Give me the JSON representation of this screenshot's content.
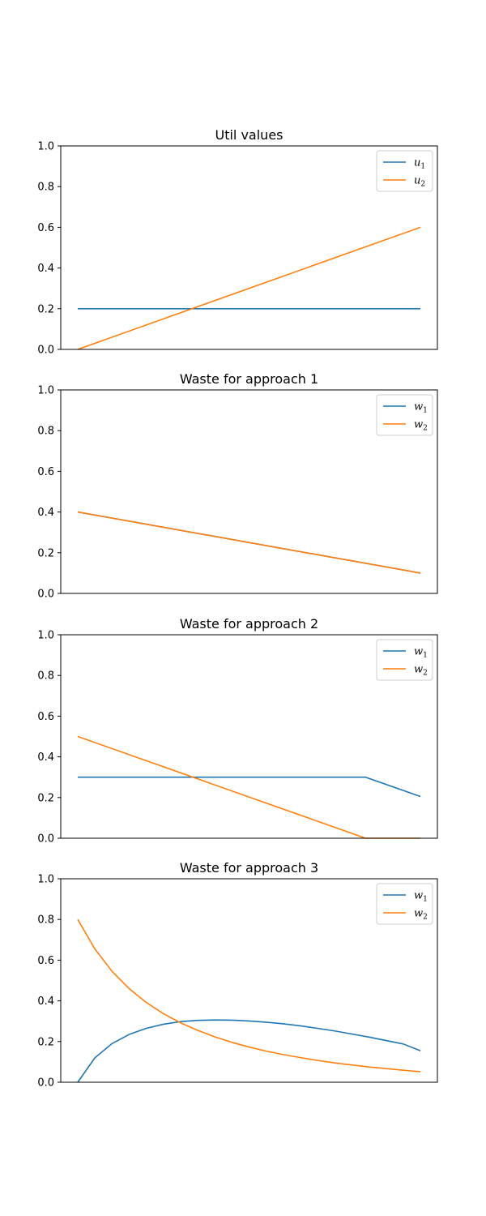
{
  "colors": {
    "series1": "#1f77b4",
    "series2": "#ff7f0e"
  },
  "chart_data": [
    {
      "type": "line",
      "title": "Util values",
      "xlabel": "",
      "ylabel": "",
      "x_ticks_visible": false,
      "ylim": [
        0,
        1
      ],
      "yticks": [
        "0.0",
        "0.2",
        "0.4",
        "0.6",
        "0.8",
        "1.0"
      ],
      "legend": "top-right",
      "series": [
        {
          "label_base": "u",
          "label_sub": "1",
          "color": "#1f77b4",
          "points": [
            [
              0,
              0.2
            ],
            [
              1,
              0.2
            ]
          ]
        },
        {
          "label_base": "u",
          "label_sub": "2",
          "color": "#ff7f0e",
          "points": [
            [
              0,
              0.0
            ],
            [
              1,
              0.6
            ]
          ]
        }
      ]
    },
    {
      "type": "line",
      "title": "Waste for approach 1",
      "xlabel": "",
      "ylabel": "",
      "x_ticks_visible": false,
      "ylim": [
        0,
        1
      ],
      "yticks": [
        "0.0",
        "0.2",
        "0.4",
        "0.6",
        "0.8",
        "1.0"
      ],
      "legend": "top-right",
      "series": [
        {
          "label_base": "w",
          "label_sub": "1",
          "color": "#1f77b4",
          "points": [
            [
              0,
              0.4
            ],
            [
              1,
              0.1
            ]
          ]
        },
        {
          "label_base": "w",
          "label_sub": "2",
          "color": "#ff7f0e",
          "points": [
            [
              0,
              0.4
            ],
            [
              1,
              0.1
            ]
          ]
        }
      ]
    },
    {
      "type": "line",
      "title": "Waste for approach 2",
      "xlabel": "",
      "ylabel": "",
      "x_ticks_visible": false,
      "ylim": [
        0,
        1
      ],
      "yticks": [
        "0.0",
        "0.2",
        "0.4",
        "0.6",
        "0.8",
        "1.0"
      ],
      "legend": "top-right",
      "series": [
        {
          "label_base": "w",
          "label_sub": "1",
          "color": "#1f77b4",
          "points": [
            [
              0,
              0.3
            ],
            [
              0.84,
              0.3
            ],
            [
              1,
              0.205
            ]
          ]
        },
        {
          "label_base": "w",
          "label_sub": "2",
          "color": "#ff7f0e",
          "points": [
            [
              0,
              0.5
            ],
            [
              0.84,
              0.0
            ],
            [
              1,
              0.0
            ]
          ]
        }
      ]
    },
    {
      "type": "line",
      "title": "Waste for approach 3",
      "xlabel": "",
      "ylabel": "",
      "x_ticks_visible": false,
      "ylim": [
        0,
        1
      ],
      "yticks": [
        "0.0",
        "0.2",
        "0.4",
        "0.6",
        "0.8",
        "1.0"
      ],
      "legend": "top-right",
      "series": [
        {
          "label_base": "w",
          "label_sub": "1",
          "color": "#1f77b4",
          "points": [
            [
              0,
              0.0
            ],
            [
              0.05,
              0.12
            ],
            [
              0.1,
              0.19
            ],
            [
              0.15,
              0.235
            ],
            [
              0.2,
              0.265
            ],
            [
              0.25,
              0.285
            ],
            [
              0.3,
              0.298
            ],
            [
              0.35,
              0.304
            ],
            [
              0.4,
              0.306
            ],
            [
              0.45,
              0.305
            ],
            [
              0.5,
              0.301
            ],
            [
              0.55,
              0.295
            ],
            [
              0.6,
              0.287
            ],
            [
              0.65,
              0.277
            ],
            [
              0.7,
              0.265
            ],
            [
              0.75,
              0.252
            ],
            [
              0.8,
              0.237
            ],
            [
              0.85,
              0.222
            ],
            [
              0.9,
              0.205
            ],
            [
              0.95,
              0.188
            ],
            [
              1,
              0.155
            ]
          ]
        },
        {
          "label_base": "w",
          "label_sub": "2",
          "color": "#ff7f0e",
          "points": [
            [
              0,
              0.8
            ],
            [
              0.05,
              0.655
            ],
            [
              0.1,
              0.545
            ],
            [
              0.15,
              0.46
            ],
            [
              0.2,
              0.392
            ],
            [
              0.25,
              0.337
            ],
            [
              0.3,
              0.292
            ],
            [
              0.35,
              0.255
            ],
            [
              0.4,
              0.223
            ],
            [
              0.45,
              0.196
            ],
            [
              0.5,
              0.173
            ],
            [
              0.55,
              0.153
            ],
            [
              0.6,
              0.136
            ],
            [
              0.65,
              0.121
            ],
            [
              0.7,
              0.107
            ],
            [
              0.75,
              0.095
            ],
            [
              0.8,
              0.085
            ],
            [
              0.85,
              0.075
            ],
            [
              0.9,
              0.067
            ],
            [
              0.95,
              0.059
            ],
            [
              1,
              0.052
            ]
          ]
        }
      ]
    }
  ]
}
